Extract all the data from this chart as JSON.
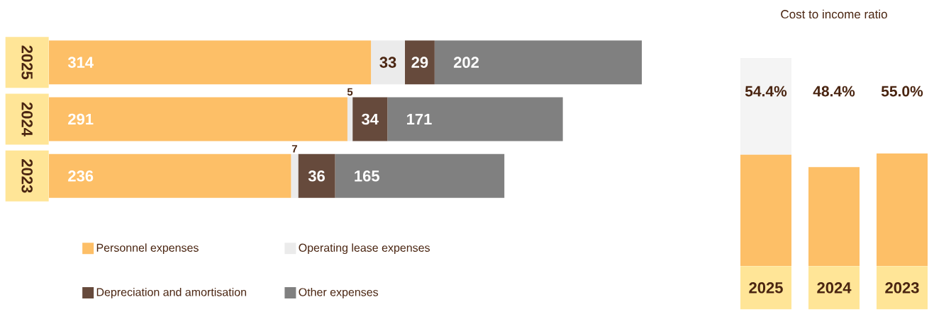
{
  "chart_data": [
    {
      "type": "bar",
      "orientation": "horizontal",
      "stacked": true,
      "categories": [
        "2025",
        "2024",
        "2023"
      ],
      "series": [
        {
          "name": "Personnel expenses",
          "color": "#fdbf67",
          "values": [
            314,
            291,
            236
          ]
        },
        {
          "name": "Operating lease expenses",
          "color": "#ebebeb",
          "values": [
            33,
            5,
            7
          ]
        },
        {
          "name": "Depreciation and amortisation",
          "color": "#664a3c",
          "values": [
            29,
            34,
            36
          ]
        },
        {
          "name": "Other expenses",
          "color": "#808080",
          "values": [
            202,
            171,
            165
          ]
        }
      ],
      "data_labels": true,
      "legend": "bottom"
    },
    {
      "type": "bar",
      "title": "Cost to income ratio",
      "categories": [
        "2025",
        "2024",
        "2023"
      ],
      "values": [
        54.4,
        48.4,
        55.0
      ],
      "color": "#fdbf67",
      "value_labels": [
        "54.4%",
        "48.4%",
        "55.0%"
      ]
    }
  ]
}
